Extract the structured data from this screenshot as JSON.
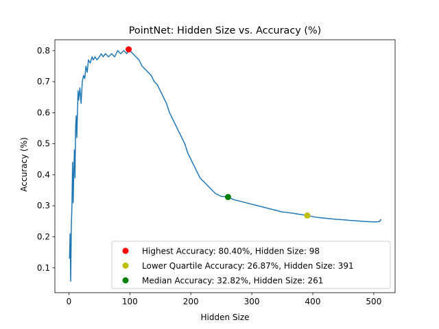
{
  "chart_data": {
    "type": "line",
    "title": "PointNet: Hidden Size vs. Accuracy (%)",
    "xlabel": "Hidden Size",
    "ylabel": "Accuracy (%)",
    "xlim": [
      -23,
      535
    ],
    "ylim": [
      0.02,
      0.835
    ],
    "xticks": [
      0,
      100,
      200,
      300,
      400,
      500
    ],
    "xtick_labels": [
      "0",
      "100",
      "200",
      "300",
      "400",
      "500"
    ],
    "yticks": [
      0.1,
      0.2,
      0.3,
      0.4,
      0.5,
      0.6,
      0.7,
      0.8
    ],
    "ytick_labels": [
      "0.1",
      "0.2",
      "0.3",
      "0.4",
      "0.5",
      "0.6",
      "0.7",
      "0.8"
    ],
    "grid": false,
    "legend_position": "lower-right",
    "series": [
      {
        "color": "#1f77b4",
        "x": [
          1,
          2,
          3,
          4,
          5,
          6,
          7,
          8,
          9,
          10,
          11,
          12,
          13,
          14,
          15,
          16,
          18,
          20,
          22,
          24,
          26,
          28,
          30,
          32,
          35,
          38,
          40,
          43,
          46,
          50,
          53,
          56,
          60,
          65,
          70,
          75,
          80,
          85,
          90,
          95,
          98,
          100,
          105,
          110,
          115,
          120,
          125,
          130,
          135,
          140,
          145,
          150,
          155,
          160,
          165,
          170,
          175,
          180,
          185,
          190,
          195,
          200,
          205,
          210,
          215,
          220,
          225,
          230,
          235,
          240,
          245,
          250,
          255,
          261,
          270,
          280,
          290,
          300,
          310,
          320,
          330,
          340,
          350,
          360,
          370,
          380,
          391,
          400,
          410,
          420,
          430,
          440,
          450,
          460,
          470,
          480,
          490,
          500,
          505,
          510,
          512
        ],
        "y": [
          0.13,
          0.21,
          0.057,
          0.24,
          0.3,
          0.44,
          0.31,
          0.41,
          0.48,
          0.39,
          0.55,
          0.59,
          0.52,
          0.6,
          0.67,
          0.64,
          0.68,
          0.63,
          0.7,
          0.72,
          0.71,
          0.75,
          0.73,
          0.77,
          0.76,
          0.78,
          0.77,
          0.78,
          0.77,
          0.78,
          0.79,
          0.78,
          0.79,
          0.78,
          0.79,
          0.78,
          0.8,
          0.79,
          0.8,
          0.79,
          0.804,
          0.8,
          0.79,
          0.78,
          0.77,
          0.75,
          0.74,
          0.73,
          0.72,
          0.7,
          0.69,
          0.67,
          0.65,
          0.63,
          0.6,
          0.58,
          0.56,
          0.54,
          0.52,
          0.5,
          0.47,
          0.45,
          0.43,
          0.41,
          0.39,
          0.38,
          0.37,
          0.36,
          0.35,
          0.34,
          0.335,
          0.33,
          0.33,
          0.328,
          0.32,
          0.315,
          0.31,
          0.305,
          0.3,
          0.295,
          0.29,
          0.285,
          0.28,
          0.278,
          0.275,
          0.272,
          0.269,
          0.265,
          0.262,
          0.26,
          0.258,
          0.256,
          0.255,
          0.253,
          0.252,
          0.25,
          0.249,
          0.248,
          0.248,
          0.25,
          0.257
        ]
      }
    ],
    "markers": [
      {
        "x": 98,
        "y": 0.804,
        "color": "#ff0000",
        "label": "Highest Accuracy: 80.40%, Hidden Size: 98"
      },
      {
        "x": 391,
        "y": 0.2687,
        "color": "#bfbf00",
        "label": "Lower Quartile Accuracy: 26.87%, Hidden Size: 391"
      },
      {
        "x": 261,
        "y": 0.3282,
        "color": "#008000",
        "label": "Median Accuracy: 32.82%, Hidden Size: 261"
      }
    ]
  }
}
